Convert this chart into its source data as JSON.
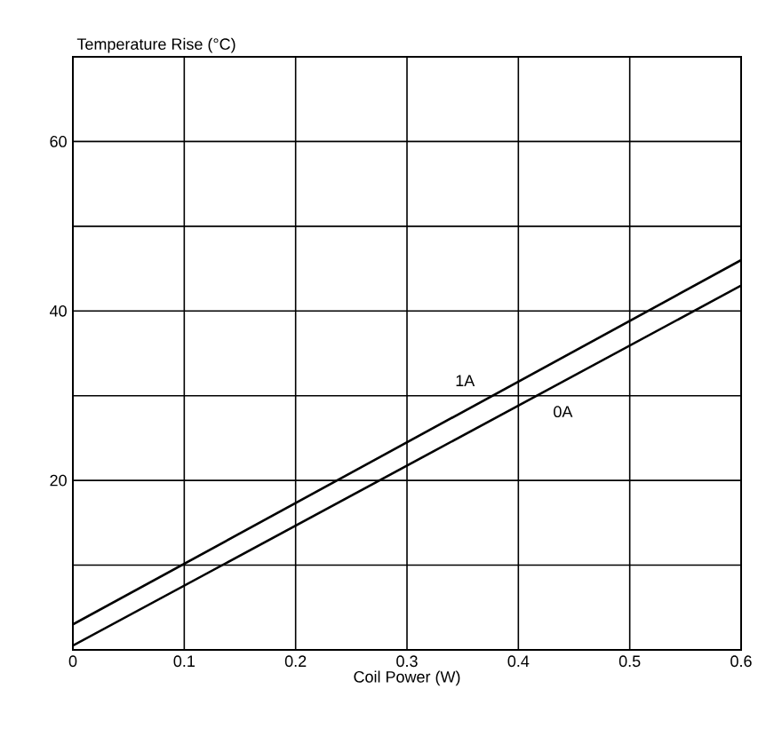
{
  "chart_data": {
    "type": "line",
    "xlabel": "Coil Power (W)",
    "ylabel": "Temperature Rise (°C)",
    "x": [
      0,
      0.6
    ],
    "series": [
      {
        "name": "1A",
        "color": "#000000",
        "values": [
          3,
          46
        ]
      },
      {
        "name": "0A",
        "color": "#000000",
        "values": [
          0.5,
          43
        ]
      }
    ],
    "xlim": [
      0,
      0.6
    ],
    "ylim": [
      0,
      70
    ],
    "xticks": [
      0,
      0.1,
      0.2,
      0.3,
      0.4,
      0.5,
      0.6
    ],
    "yticks": [
      {
        "value": 10,
        "label": null
      },
      20,
      {
        "value": 30,
        "label": null
      },
      40,
      {
        "value": 50,
        "label": null
      },
      60,
      {
        "value": 70,
        "label": null
      }
    ],
    "grid": true,
    "marker": "none",
    "line_style": "solid"
  }
}
